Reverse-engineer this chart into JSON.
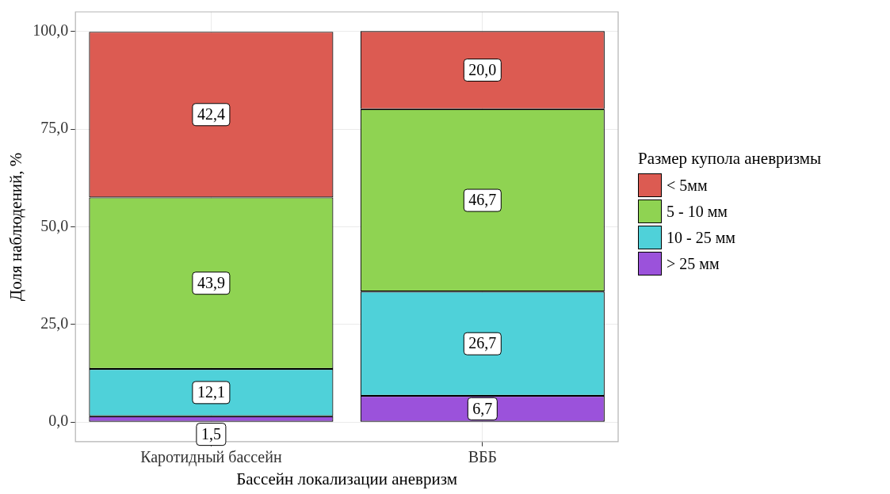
{
  "chart_data": {
    "type": "bar",
    "stacked": true,
    "xlabel": "Бассейн локализации аневризм",
    "ylabel": "Доля наблюдений, %",
    "legend_title": "Размер купола аневризмы",
    "legend": "right",
    "grid": true,
    "categories": [
      "Каротидный бассейн",
      "ВББ"
    ],
    "ylim": [
      -5,
      105
    ],
    "yticks": [
      {
        "value": 0,
        "label": "0,0"
      },
      {
        "value": 25,
        "label": "25,0"
      },
      {
        "value": 50,
        "label": "50,0"
      },
      {
        "value": 75,
        "label": "75,0"
      },
      {
        "value": 100,
        "label": "100,0"
      }
    ],
    "series": [
      {
        "name": "> 25 мм",
        "color": "#9b52db",
        "values": [
          1.5,
          6.7
        ],
        "value_labels": [
          "1,5",
          "6,7"
        ]
      },
      {
        "name": "10 - 25 мм",
        "color": "#4fd1d9",
        "values": [
          12.1,
          26.7
        ],
        "value_labels": [
          "12,1",
          "26,7"
        ]
      },
      {
        "name": "5 - 10 мм",
        "color": "#8fd352",
        "values": [
          43.9,
          46.7
        ],
        "value_labels": [
          "43,9",
          "46,7"
        ]
      },
      {
        "name": "< 5мм",
        "color": "#dc5b52",
        "values": [
          42.4,
          20.0
        ],
        "value_labels": [
          "42,4",
          "20,0"
        ]
      }
    ]
  }
}
